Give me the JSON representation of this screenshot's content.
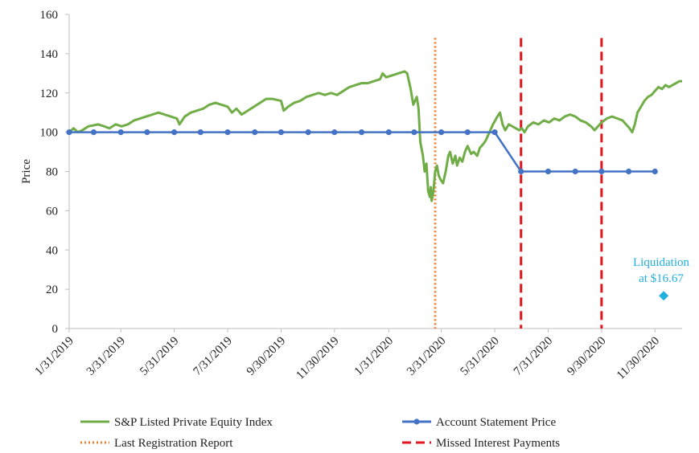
{
  "chart_data": {
    "type": "line",
    "ylabel": "Price",
    "ylim": [
      0,
      160
    ],
    "yticks": [
      0,
      20,
      40,
      60,
      80,
      100,
      120,
      140,
      160
    ],
    "xlim": [
      "2019-01-31",
      "2020-12-31"
    ],
    "xtick_dates": [
      "2019-01-31",
      "2019-03-31",
      "2019-05-31",
      "2019-07-31",
      "2019-09-30",
      "2019-11-30",
      "2020-01-31",
      "2020-03-31",
      "2020-05-31",
      "2020-07-31",
      "2020-09-30",
      "2020-11-30"
    ],
    "xtick_labels": [
      "1/31/2019",
      "3/31/2019",
      "5/31/2019",
      "7/31/2019",
      "9/30/2019",
      "11/30/2019",
      "1/31/2020",
      "3/31/2020",
      "5/31/2020",
      "7/31/2020",
      "9/30/2020",
      "11/30/2020"
    ],
    "grid": false,
    "legend_position": "bottom",
    "series": [
      {
        "name": "S&P Listed Private Equity Index",
        "style": "line",
        "color": "#70ad47",
        "points": [
          [
            "2019-01-31",
            100
          ],
          [
            "2019-02-05",
            102
          ],
          [
            "2019-02-10",
            100
          ],
          [
            "2019-02-15",
            101
          ],
          [
            "2019-02-22",
            103
          ],
          [
            "2019-03-05",
            104
          ],
          [
            "2019-03-12",
            103
          ],
          [
            "2019-03-18",
            102
          ],
          [
            "2019-03-25",
            104
          ],
          [
            "2019-04-01",
            103
          ],
          [
            "2019-04-08",
            104
          ],
          [
            "2019-04-15",
            106
          ],
          [
            "2019-04-22",
            107
          ],
          [
            "2019-04-29",
            108
          ],
          [
            "2019-05-06",
            109
          ],
          [
            "2019-05-13",
            110
          ],
          [
            "2019-05-20",
            109
          ],
          [
            "2019-05-27",
            108
          ],
          [
            "2019-06-03",
            107
          ],
          [
            "2019-06-06",
            104
          ],
          [
            "2019-06-12",
            108
          ],
          [
            "2019-06-19",
            110
          ],
          [
            "2019-06-26",
            111
          ],
          [
            "2019-07-03",
            112
          ],
          [
            "2019-07-10",
            114
          ],
          [
            "2019-07-17",
            115
          ],
          [
            "2019-07-24",
            114
          ],
          [
            "2019-07-31",
            113
          ],
          [
            "2019-08-05",
            110
          ],
          [
            "2019-08-10",
            112
          ],
          [
            "2019-08-16",
            109
          ],
          [
            "2019-08-23",
            111
          ],
          [
            "2019-08-30",
            113
          ],
          [
            "2019-09-06",
            115
          ],
          [
            "2019-09-13",
            117
          ],
          [
            "2019-09-20",
            117
          ],
          [
            "2019-09-30",
            116
          ],
          [
            "2019-10-03",
            111
          ],
          [
            "2019-10-08",
            113
          ],
          [
            "2019-10-15",
            115
          ],
          [
            "2019-10-22",
            116
          ],
          [
            "2019-10-29",
            118
          ],
          [
            "2019-11-05",
            119
          ],
          [
            "2019-11-12",
            120
          ],
          [
            "2019-11-19",
            119
          ],
          [
            "2019-11-26",
            120
          ],
          [
            "2019-12-03",
            119
          ],
          [
            "2019-12-10",
            121
          ],
          [
            "2019-12-17",
            123
          ],
          [
            "2019-12-24",
            124
          ],
          [
            "2019-12-31",
            125
          ],
          [
            "2020-01-07",
            125
          ],
          [
            "2020-01-14",
            126
          ],
          [
            "2020-01-21",
            127
          ],
          [
            "2020-01-24",
            130
          ],
          [
            "2020-01-28",
            128
          ],
          [
            "2020-02-04",
            129
          ],
          [
            "2020-02-11",
            130
          ],
          [
            "2020-02-18",
            131
          ],
          [
            "2020-02-21",
            130
          ],
          [
            "2020-02-25",
            122
          ],
          [
            "2020-02-28",
            114
          ],
          [
            "2020-03-03",
            118
          ],
          [
            "2020-03-05",
            112
          ],
          [
            "2020-03-07",
            95
          ],
          [
            "2020-03-10",
            88
          ],
          [
            "2020-03-12",
            80
          ],
          [
            "2020-03-14",
            84
          ],
          [
            "2020-03-16",
            70
          ],
          [
            "2020-03-18",
            67
          ],
          [
            "2020-03-19",
            72
          ],
          [
            "2020-03-20",
            65
          ],
          [
            "2020-03-22",
            70
          ],
          [
            "2020-03-24",
            80
          ],
          [
            "2020-03-26",
            83
          ],
          [
            "2020-03-28",
            78
          ],
          [
            "2020-03-30",
            76
          ],
          [
            "2020-04-02",
            74
          ],
          [
            "2020-04-05",
            80
          ],
          [
            "2020-04-08",
            88
          ],
          [
            "2020-04-10",
            90
          ],
          [
            "2020-04-13",
            84
          ],
          [
            "2020-04-16",
            88
          ],
          [
            "2020-04-18",
            83
          ],
          [
            "2020-04-21",
            87
          ],
          [
            "2020-04-24",
            85
          ],
          [
            "2020-04-27",
            90
          ],
          [
            "2020-04-30",
            93
          ],
          [
            "2020-05-04",
            89
          ],
          [
            "2020-05-07",
            90
          ],
          [
            "2020-05-11",
            88
          ],
          [
            "2020-05-14",
            92
          ],
          [
            "2020-05-18",
            94
          ],
          [
            "2020-05-21",
            96
          ],
          [
            "2020-05-25",
            100
          ],
          [
            "2020-05-29",
            104
          ],
          [
            "2020-06-03",
            108
          ],
          [
            "2020-06-06",
            110
          ],
          [
            "2020-06-09",
            104
          ],
          [
            "2020-06-12",
            101
          ],
          [
            "2020-06-16",
            104
          ],
          [
            "2020-06-20",
            103
          ],
          [
            "2020-06-24",
            102
          ],
          [
            "2020-06-28",
            101
          ],
          [
            "2020-07-01",
            102
          ],
          [
            "2020-07-04",
            100
          ],
          [
            "2020-07-08",
            103
          ],
          [
            "2020-07-14",
            105
          ],
          [
            "2020-07-20",
            104
          ],
          [
            "2020-07-26",
            106
          ],
          [
            "2020-08-01",
            105
          ],
          [
            "2020-08-07",
            107
          ],
          [
            "2020-08-13",
            106
          ],
          [
            "2020-08-19",
            108
          ],
          [
            "2020-08-25",
            109
          ],
          [
            "2020-08-31",
            108
          ],
          [
            "2020-09-06",
            106
          ],
          [
            "2020-09-12",
            105
          ],
          [
            "2020-09-18",
            103
          ],
          [
            "2020-09-22",
            101
          ],
          [
            "2020-09-26",
            103
          ],
          [
            "2020-09-30",
            105
          ],
          [
            "2020-10-06",
            107
          ],
          [
            "2020-10-12",
            108
          ],
          [
            "2020-10-18",
            107
          ],
          [
            "2020-10-24",
            106
          ],
          [
            "2020-10-28",
            104
          ],
          [
            "2020-11-01",
            102
          ],
          [
            "2020-11-04",
            100
          ],
          [
            "2020-11-07",
            104
          ],
          [
            "2020-11-10",
            110
          ],
          [
            "2020-11-14",
            113
          ],
          [
            "2020-11-18",
            116
          ],
          [
            "2020-11-22",
            118
          ],
          [
            "2020-11-26",
            119
          ],
          [
            "2020-11-30",
            121
          ],
          [
            "2020-12-04",
            123
          ],
          [
            "2020-12-08",
            122
          ],
          [
            "2020-12-12",
            124
          ],
          [
            "2020-12-16",
            123
          ],
          [
            "2020-12-20",
            124
          ],
          [
            "2020-12-24",
            125
          ],
          [
            "2020-12-28",
            126
          ],
          [
            "2020-12-31",
            126
          ]
        ]
      },
      {
        "name": "Account Statement Price",
        "style": "line-markers",
        "color": "#4472c4",
        "points": [
          [
            "2019-01-31",
            100
          ],
          [
            "2019-02-28",
            100
          ],
          [
            "2019-03-31",
            100
          ],
          [
            "2019-04-30",
            100
          ],
          [
            "2019-05-31",
            100
          ],
          [
            "2019-06-30",
            100
          ],
          [
            "2019-07-31",
            100
          ],
          [
            "2019-08-31",
            100
          ],
          [
            "2019-09-30",
            100
          ],
          [
            "2019-10-31",
            100
          ],
          [
            "2019-11-30",
            100
          ],
          [
            "2019-12-31",
            100
          ],
          [
            "2020-01-31",
            100
          ],
          [
            "2020-02-29",
            100
          ],
          [
            "2020-03-31",
            100
          ],
          [
            "2020-04-30",
            100
          ],
          [
            "2020-05-31",
            100
          ],
          [
            "2020-06-30",
            80
          ],
          [
            "2020-07-31",
            80
          ],
          [
            "2020-08-31",
            80
          ],
          [
            "2020-09-30",
            80
          ],
          [
            "2020-10-31",
            80
          ],
          [
            "2020-11-30",
            80
          ]
        ]
      }
    ],
    "reference_lines": [
      {
        "name": "Last Registration Report",
        "style": "dotted",
        "color": "#ed7d31",
        "dates": [
          "2020-03-24"
        ]
      },
      {
        "name": "Missed Interest Payments",
        "style": "dashed",
        "color": "#e2161e",
        "dates": [
          "2020-06-30",
          "2020-09-30"
        ]
      }
    ],
    "annotation": {
      "lines": [
        "Liquidation",
        "at $16.67"
      ],
      "date": "2020-12-10",
      "value": 16.67,
      "color": "#20b0e0"
    }
  }
}
